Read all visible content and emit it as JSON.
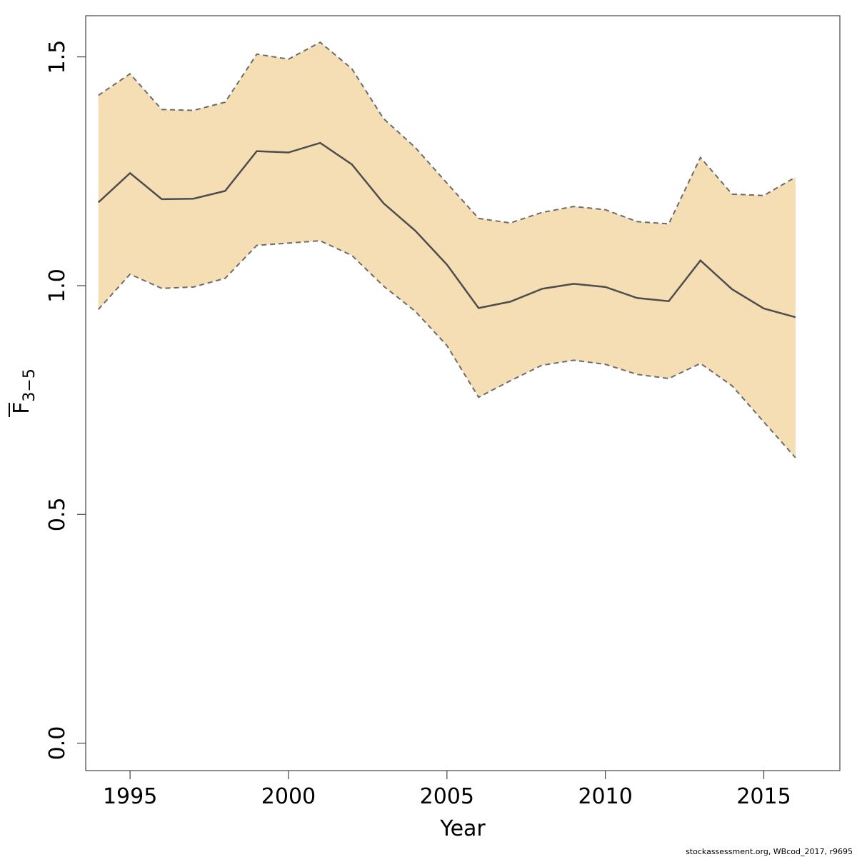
{
  "chart_data": {
    "type": "area",
    "xlabel": "Year",
    "ylabel": {
      "main": "F",
      "subscript": "3−5"
    },
    "xlim": [
      1993.6,
      2017.4
    ],
    "ylim": [
      -0.06,
      1.59
    ],
    "x_ticks": [
      1995,
      2000,
      2005,
      2010,
      2015
    ],
    "y_ticks": [
      0.0,
      0.5,
      1.0,
      1.5
    ],
    "x_tick_labels": [
      "1995",
      "2000",
      "2005",
      "2010",
      "2015"
    ],
    "y_tick_labels": [
      "0.0",
      "0.5",
      "1.0",
      "1.5"
    ],
    "grid": false,
    "colors": {
      "band_fill": "#f5deb3",
      "estimate_line": "#4d4d4d",
      "bound_line": "#6b6b6b"
    },
    "series": [
      {
        "years": [
          1994,
          1995,
          1996,
          1997,
          1998,
          1999,
          2000,
          2001,
          2002,
          2003,
          2004,
          2005,
          2006,
          2007,
          2008,
          2009,
          2010,
          2011,
          2012,
          2013,
          2014,
          2015,
          2016
        ],
        "estimate": [
          1.182,
          1.246,
          1.189,
          1.19,
          1.207,
          1.294,
          1.291,
          1.312,
          1.265,
          1.18,
          1.12,
          1.046,
          0.951,
          0.965,
          0.993,
          1.004,
          0.997,
          0.973,
          0.966,
          1.055,
          0.992,
          0.95,
          0.931
        ],
        "upper": [
          1.416,
          1.463,
          1.385,
          1.383,
          1.401,
          1.506,
          1.495,
          1.532,
          1.474,
          1.365,
          1.302,
          1.224,
          1.147,
          1.137,
          1.16,
          1.173,
          1.166,
          1.14,
          1.135,
          1.28,
          1.2,
          1.197,
          1.237
        ],
        "lower": [
          0.948,
          1.025,
          0.994,
          0.997,
          1.016,
          1.088,
          1.093,
          1.098,
          1.066,
          0.999,
          0.944,
          0.869,
          0.756,
          0.792,
          0.826,
          0.837,
          0.828,
          0.806,
          0.797,
          0.83,
          0.781,
          0.702,
          0.624
        ]
      }
    ],
    "footer_text": "stockassessment.org, WBcod_2017, r9695"
  }
}
